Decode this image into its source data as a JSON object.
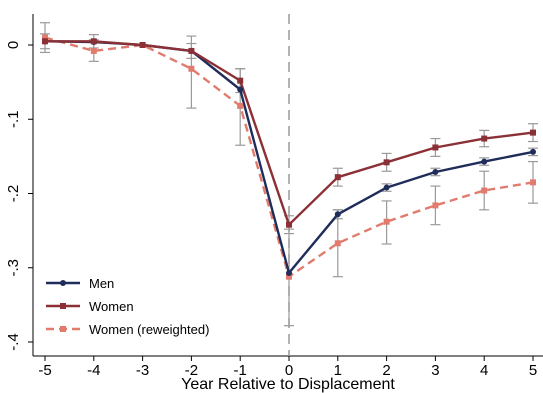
{
  "chart_data": {
    "type": "line",
    "xlabel": "Year Relative to Displacement",
    "ylabel": "",
    "xlim": [
      -5,
      5
    ],
    "ylim": [
      -0.4,
      0
    ],
    "x": [
      -5,
      -4,
      -3,
      -2,
      -1,
      0,
      1,
      2,
      3,
      4,
      5
    ],
    "xticks": [
      "-5",
      "-4",
      "-3",
      "-2",
      "-1",
      "0",
      "1",
      "2",
      "3",
      "4",
      "5"
    ],
    "yticks": [
      {
        "value": 0,
        "label": "0"
      },
      {
        "value": -0.1,
        "label": "-.1"
      },
      {
        "value": -0.2,
        "label": "-.2"
      },
      {
        "value": -0.3,
        "label": "-.3"
      },
      {
        "value": -0.4,
        "label": "-.4"
      }
    ],
    "reference_line": {
      "x": 0,
      "style": "dashed",
      "color": "#999999"
    },
    "grid": false,
    "legend_position": "bottom-left",
    "series": [
      {
        "name": "Men",
        "color": "#1f2d5a",
        "dash": "solid",
        "marker": "circle",
        "values": [
          0.005,
          0.004,
          0.0,
          -0.008,
          -0.06,
          -0.307,
          -0.228,
          -0.192,
          -0.171,
          -0.157,
          -0.144
        ],
        "ci_low": [
          null,
          null,
          null,
          null,
          null,
          null,
          -0.234,
          -0.197,
          -0.176,
          -0.162,
          -0.149
        ],
        "ci_high": [
          null,
          null,
          null,
          null,
          null,
          null,
          -0.222,
          -0.187,
          -0.166,
          -0.152,
          -0.139
        ]
      },
      {
        "name": "Women",
        "color": "#8b3036",
        "dash": "solid",
        "marker": "square",
        "values": [
          0.005,
          0.005,
          0.0,
          -0.008,
          -0.048,
          -0.242,
          -0.178,
          -0.158,
          -0.138,
          -0.126,
          -0.118
        ],
        "ci_low": [
          -0.005,
          -0.004,
          null,
          -0.018,
          -0.064,
          -0.254,
          -0.19,
          -0.17,
          -0.15,
          -0.137,
          -0.13
        ],
        "ci_high": [
          0.015,
          0.014,
          null,
          0.002,
          -0.032,
          -0.23,
          -0.166,
          -0.146,
          -0.126,
          -0.115,
          -0.106
        ]
      },
      {
        "name": "Women (reweighted)",
        "color": "#e07b6e",
        "dash": "dashed",
        "marker": "square",
        "values": [
          0.01,
          -0.008,
          0.0,
          -0.032,
          -0.082,
          -0.312,
          -0.267,
          -0.238,
          -0.216,
          -0.196,
          -0.185
        ],
        "ci_low": [
          -0.01,
          -0.022,
          null,
          -0.085,
          -0.135,
          -0.378,
          -0.312,
          -0.268,
          -0.242,
          -0.222,
          -0.213
        ],
        "ci_high": [
          0.03,
          0.007,
          null,
          0.012,
          -0.032,
          -0.248,
          -0.222,
          -0.21,
          -0.19,
          -0.17,
          -0.157
        ]
      }
    ]
  }
}
